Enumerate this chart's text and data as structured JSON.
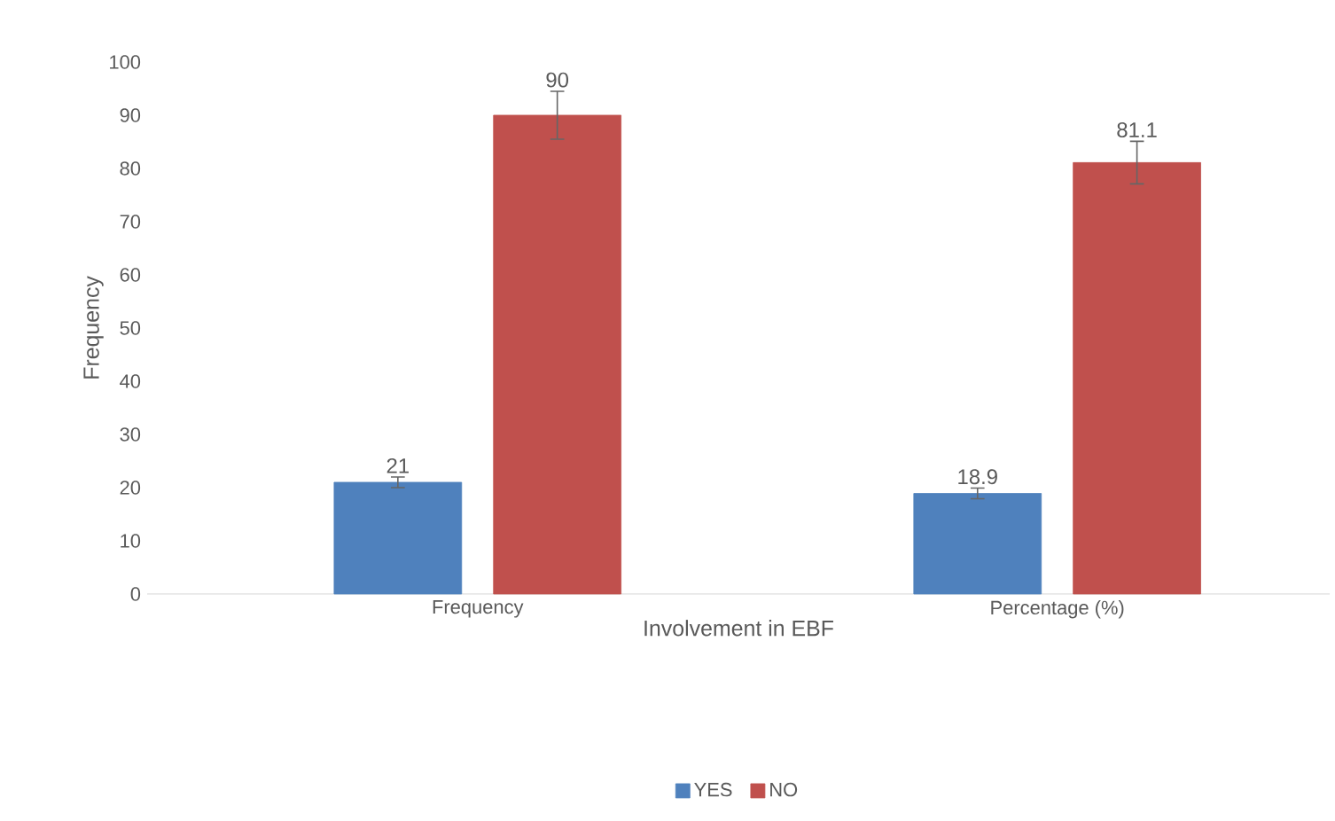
{
  "chart_data": {
    "type": "bar",
    "xlabel": "Involvement in EBF",
    "ylabel": "Frequency",
    "categories": [
      "Frequency",
      "Percentage (%)"
    ],
    "series": [
      {
        "name": "YES",
        "color": "#4f81bd",
        "values": [
          21,
          18.9
        ],
        "errors": [
          1,
          1
        ]
      },
      {
        "name": "NO",
        "color": "#c0504d",
        "values": [
          90,
          81.1
        ],
        "errors": [
          4.5,
          4
        ]
      }
    ],
    "ylim": [
      0,
      100
    ],
    "yticks": [
      0,
      10,
      20,
      30,
      40,
      50,
      60,
      70,
      80,
      90,
      100
    ],
    "grid": false,
    "legend": "bottom",
    "data_labels": true
  }
}
